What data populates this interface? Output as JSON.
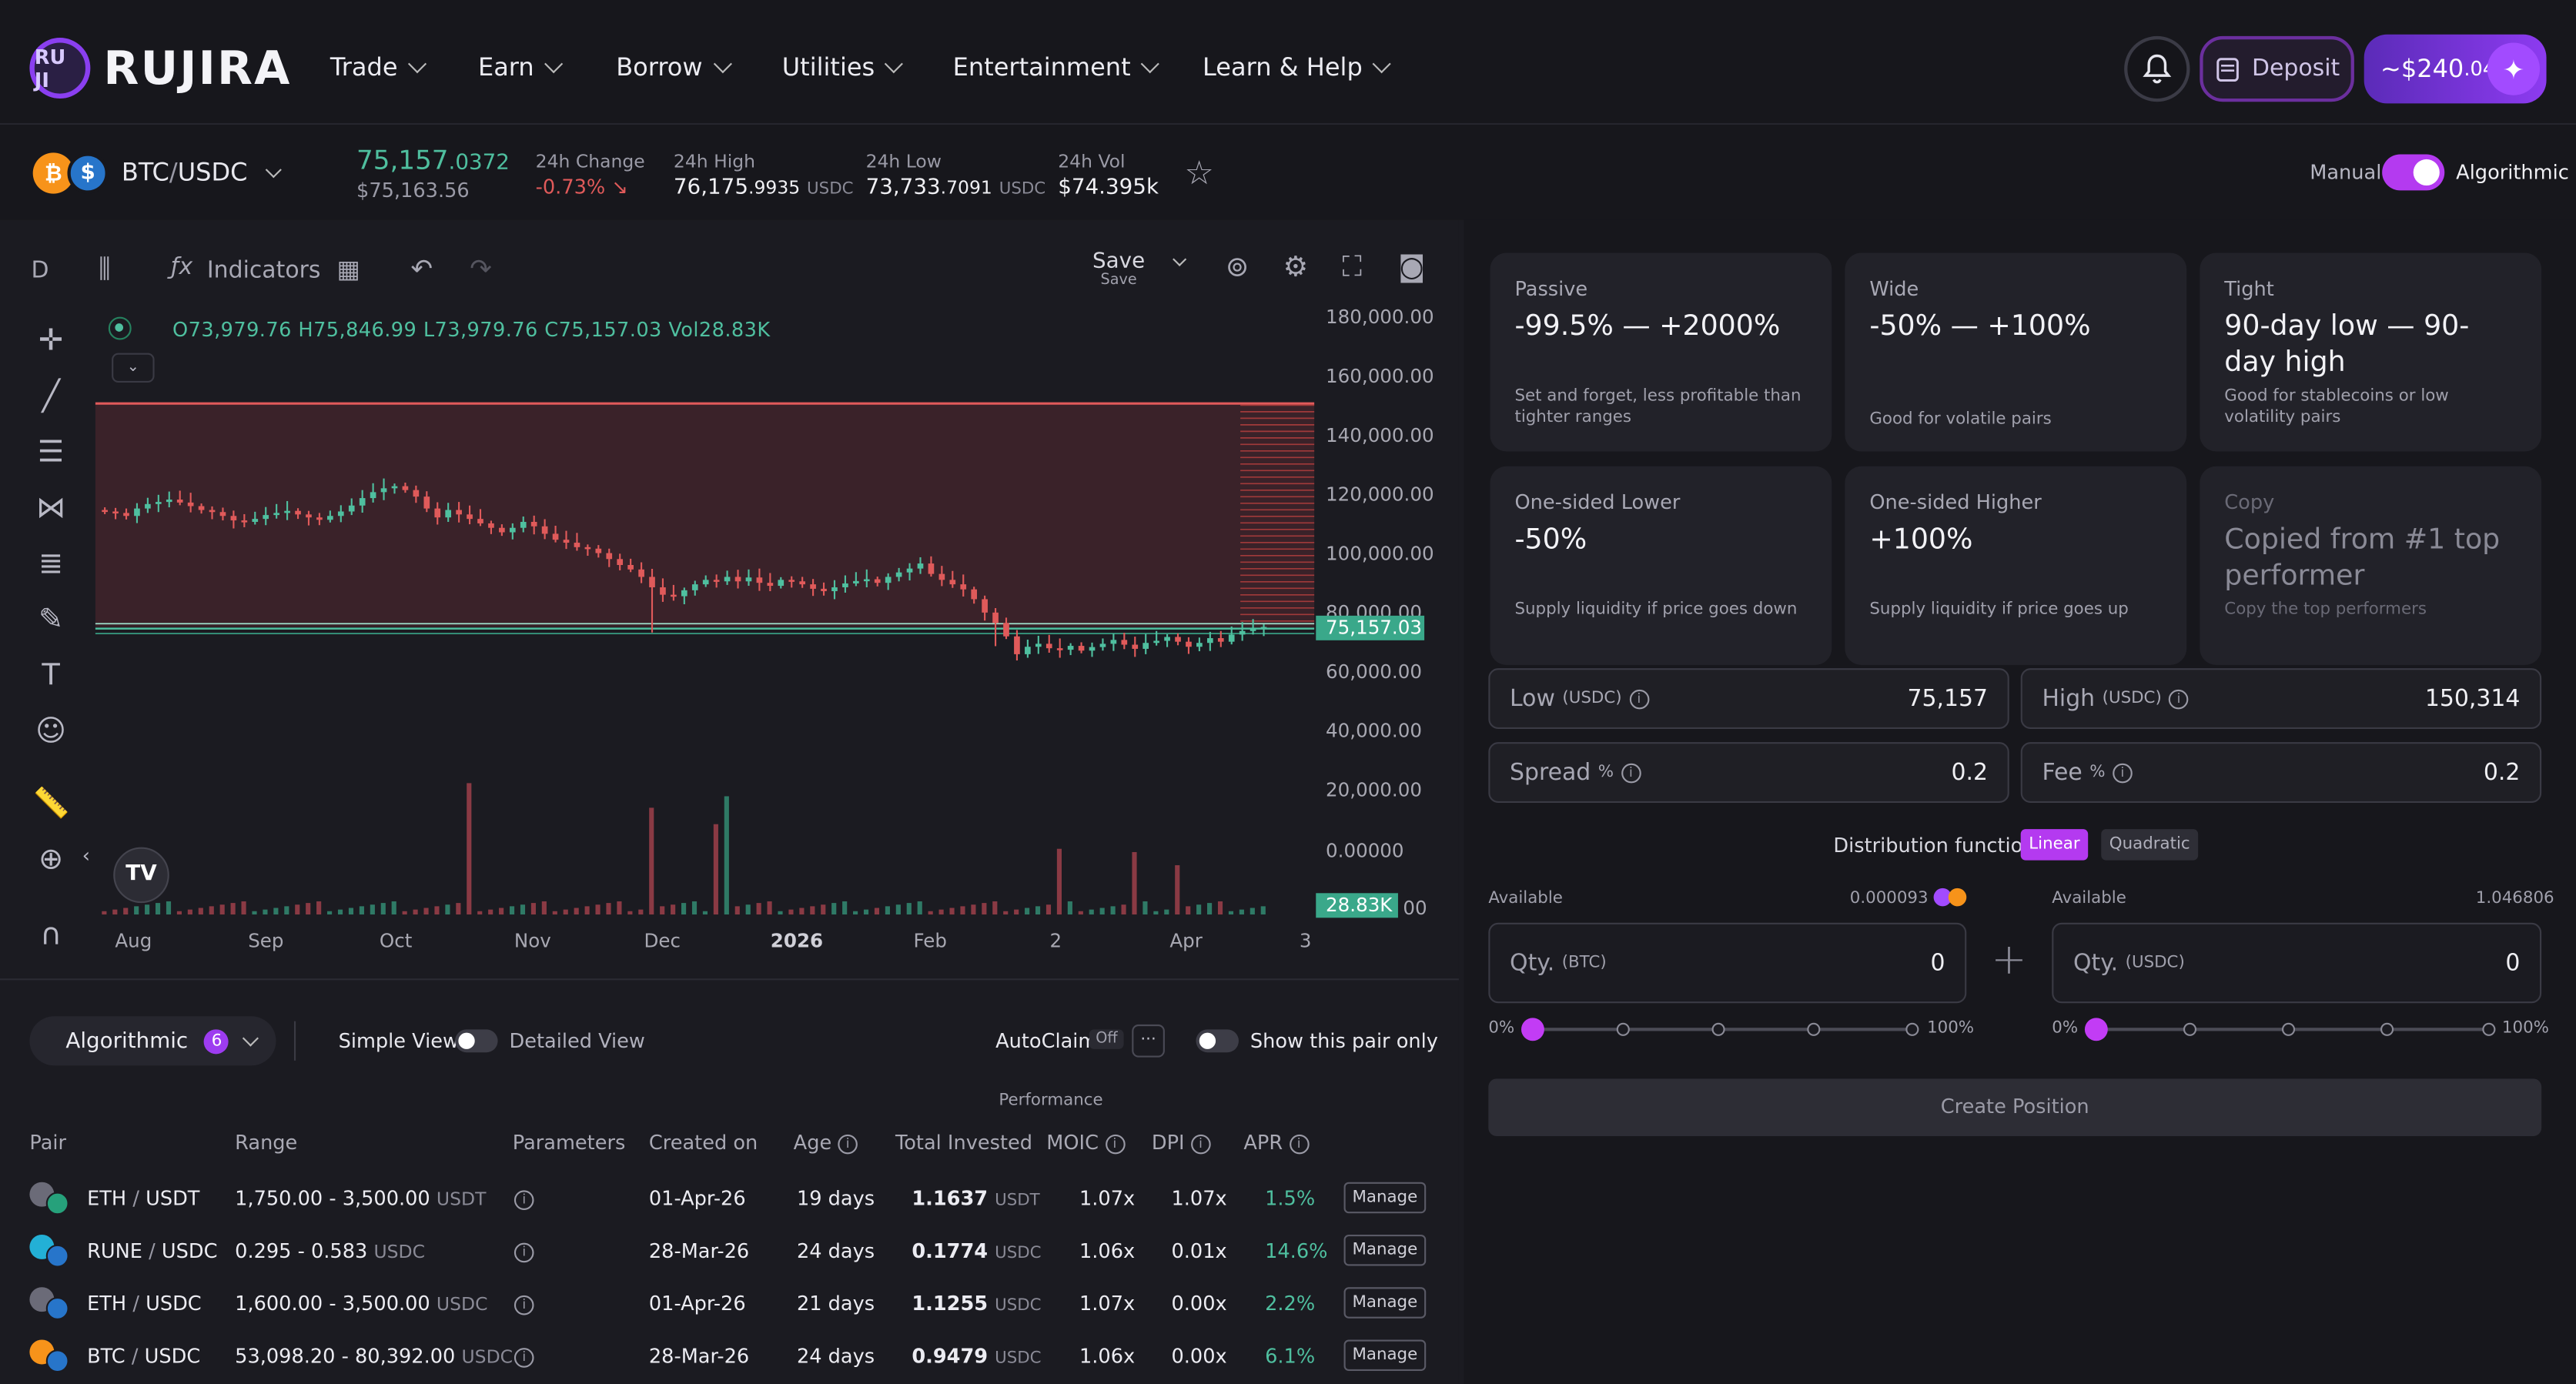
{
  "app": {
    "logo": "RUJIRA",
    "logo_mark": "RU JI"
  },
  "nav": [
    "Trade",
    "Earn",
    "Borrow",
    "Utilities",
    "Entertainment",
    "Learn & Help"
  ],
  "header": {
    "deposit": "Deposit",
    "balance": "~$240",
    "balance_cents": ".04"
  },
  "ticker": {
    "pair_base": "BTC",
    "pair_sep": " / ",
    "pair_quote": "USDC",
    "price_main": "75,157",
    "price_dec": ".0372",
    "price_usd": "$75,163.56",
    "change_label": "24h Change",
    "change_value": "-0.73%",
    "high_label": "24h High",
    "high_main": "76,175",
    "high_dec": ".9935",
    "high_unit": "USDC",
    "low_label": "24h Low",
    "low_main": "73,733",
    "low_dec": ".7091",
    "low_unit": "USDC",
    "vol_label": "24h Vol",
    "vol_value": "$74.395k",
    "mode_manual": "Manual",
    "mode_algo": "Algorithmic"
  },
  "chart_toolbar": {
    "interval": "D",
    "indicators": "Indicators",
    "save": "Save",
    "save_sub": "Save"
  },
  "chart_legend": {
    "o": "O73,979.76",
    "h": "H75,846.99",
    "l": "L73,979.76",
    "c": "C75,157.03",
    "vol": "Vol28.83K"
  },
  "chart_data": {
    "type": "candlestick",
    "symbol": "BTC / USDC",
    "interval": "D",
    "yticks": [
      "180,000.00",
      "160,000.00",
      "140,000.00",
      "120,000.00",
      "100,000.00",
      "80,000.00",
      "60,000.00",
      "40,000.00",
      "20,000.00",
      "0.00000"
    ],
    "ylim": [
      0,
      180000
    ],
    "xticks": [
      "Aug",
      "Sep",
      "Oct",
      "Nov",
      "Dec",
      "2026",
      "Feb",
      "2",
      "Apr",
      "3"
    ],
    "last_price": 75157.03,
    "last_price_label": "75,157.03",
    "last_volume_label": "28.83K",
    "volume_axis_tail": "00",
    "range_low": 75157,
    "range_high": 150314,
    "close_series": [
      114000,
      113500,
      112500,
      115000,
      116500,
      117200,
      118000,
      117000,
      115800,
      114500,
      113800,
      112500,
      111000,
      110500,
      111500,
      112800,
      113500,
      114200,
      113000,
      112000,
      111200,
      112500,
      114000,
      116000,
      118500,
      120500,
      121800,
      122500,
      121200,
      119000,
      115000,
      112000,
      114500,
      113000,
      111500,
      110000,
      108500,
      107000,
      108500,
      110500,
      109000,
      106500,
      104500,
      103500,
      102000,
      101500,
      100000,
      98000,
      96000,
      94500,
      92000,
      88500,
      86000,
      85500,
      87500,
      89500,
      91000,
      90500,
      92000,
      90500,
      91800,
      90000,
      89000,
      91000,
      90500,
      89500,
      88000,
      87200,
      88500,
      89800,
      90600,
      91200,
      90000,
      92000,
      93500,
      94800,
      96500,
      93000,
      91000,
      89500,
      87800,
      84500,
      80000,
      76500,
      72000,
      66000,
      68500,
      69500,
      68000,
      67500,
      68800,
      67200,
      68400,
      69500,
      70800,
      69200,
      67800,
      69800,
      70500,
      71800,
      70200,
      68500,
      69800,
      71400,
      70200,
      72600,
      73800,
      74500,
      75157
    ]
  },
  "table": {
    "view_select": "Algorithmic",
    "view_count": "6",
    "simple_view": "Simple View",
    "detailed_view": "Detailed View",
    "autoclaim": "AutoClaim",
    "autoclaim_state": "Off",
    "autoclaim_menu": "···",
    "pair_only": "Show this pair only",
    "perf_group": "Performance",
    "headers": [
      "Pair",
      "Range",
      "Parameters",
      "Created on",
      "Age",
      "Total Invested",
      "MOIC",
      "DPI",
      "APR"
    ],
    "manage": "Manage",
    "rows": [
      {
        "base": "ETH",
        "quote": "USDT",
        "range": "1,750.00 - 3,500.00",
        "range_unit": "USDT",
        "created": "01-Apr-26",
        "age": "19 days",
        "invested": "1.1637",
        "inv_unit": "USDT",
        "moic": "1.07x",
        "dpi": "1.07x",
        "apr": "1.5%",
        "c1": "#6b6b78",
        "c2": "#26a17b"
      },
      {
        "base": "RUNE",
        "quote": "USDC",
        "range": "0.295 - 0.583",
        "range_unit": "USDC",
        "created": "28-Mar-26",
        "age": "24 days",
        "invested": "0.1774",
        "inv_unit": "USDC",
        "moic": "1.06x",
        "dpi": "0.01x",
        "apr": "14.6%",
        "c1": "#23b0d6",
        "c2": "#2775ca"
      },
      {
        "base": "ETH",
        "quote": "USDC",
        "range": "1,600.00 - 3,500.00",
        "range_unit": "USDC",
        "created": "01-Apr-26",
        "age": "21 days",
        "invested": "1.1255",
        "inv_unit": "USDC",
        "moic": "1.07x",
        "dpi": "0.00x",
        "apr": "2.2%",
        "c1": "#6b6b78",
        "c2": "#2775ca"
      },
      {
        "base": "BTC",
        "quote": "USDC",
        "range": "53,098.20 - 80,392.00",
        "range_unit": "USDC",
        "created": "28-Mar-26",
        "age": "24 days",
        "invested": "0.9479",
        "inv_unit": "USDC",
        "moic": "1.06x",
        "dpi": "0.00x",
        "apr": "6.1%",
        "c1": "#f7931a",
        "c2": "#2775ca"
      }
    ]
  },
  "strategies": [
    {
      "title": "Passive",
      "value": "-99.5% — +2000%",
      "desc": "Set and forget, less profitable than tighter ranges"
    },
    {
      "title": "Wide",
      "value": "-50% — +100%",
      "desc": "Good for volatile pairs"
    },
    {
      "title": "Tight",
      "value": "90-day low — 90-day high",
      "desc": "Good for stablecoins or low volatility pairs"
    },
    {
      "title": "One-sided Lower",
      "value": "-50%",
      "desc": "Supply liquidity if price goes down"
    },
    {
      "title": "One-sided Higher",
      "value": "+100%",
      "desc": "Supply liquidity if price goes up"
    },
    {
      "title": "Copy",
      "value": "Copied from #1 top performer",
      "desc": "Copy the top performers"
    }
  ],
  "form": {
    "low_label": "Low",
    "low_unit": "(USDC)",
    "low_value": "75,157",
    "high_label": "High",
    "high_unit": "(USDC)",
    "high_value": "150,314",
    "spread_label": "Spread",
    "spread_unit": "%",
    "spread_value": "0.2",
    "fee_label": "Fee",
    "fee_unit": "%",
    "fee_value": "0.2",
    "dist_label": "Distribution function",
    "dist_linear": "Linear",
    "dist_quadratic": "Quadratic",
    "available": "Available",
    "avail_btc": "0.000093",
    "avail_usdc": "1.046806",
    "qty_btc": "Qty.",
    "qty_btc_unit": "(BTC)",
    "qty_btc_value": "0",
    "qty_usdc": "Qty.",
    "qty_usdc_unit": "(USDC)",
    "qty_usdc_value": "0",
    "plus": "+",
    "pct_min": "0%",
    "pct_max": "100%",
    "create": "Create Position"
  },
  "colors": {
    "accent": "#b43af0",
    "up": "#4fbf9f",
    "down": "#e05a5a",
    "range_fill": "#3a2229"
  }
}
